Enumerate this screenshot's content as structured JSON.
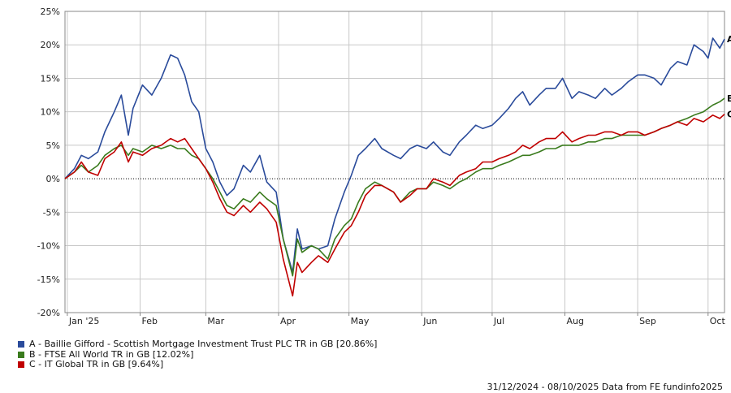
{
  "chart_data": {
    "type": "line",
    "xlabel": "",
    "ylabel": "",
    "ylim": [
      -20,
      25
    ],
    "y_ticks": [
      -20,
      -15,
      -10,
      -5,
      0,
      5,
      10,
      15,
      20,
      25
    ],
    "y_tick_labels": [
      "-20%",
      "-15%",
      "-10%",
      "-5%",
      "0%",
      "5%",
      "10%",
      "15%",
      "20%",
      "25%"
    ],
    "x_range": [
      "2024-12-31",
      "2025-10-08"
    ],
    "x_ticks": [
      {
        "date": "2025-01-01",
        "label": "Jan '25"
      },
      {
        "date": "2025-02-01",
        "label": "Feb"
      },
      {
        "date": "2025-03-01",
        "label": "Mar"
      },
      {
        "date": "2025-04-01",
        "label": "Apr"
      },
      {
        "date": "2025-05-01",
        "label": "May"
      },
      {
        "date": "2025-06-01",
        "label": "Jun"
      },
      {
        "date": "2025-07-01",
        "label": "Jul"
      },
      {
        "date": "2025-08-01",
        "label": "Aug"
      },
      {
        "date": "2025-09-01",
        "label": "Sep"
      },
      {
        "date": "2025-10-01",
        "label": "Oct"
      }
    ],
    "grid": true,
    "zero_line": "dotted",
    "legend_position": "bottom-left",
    "series": [
      {
        "name": "A - Baillie Gifford - Scottish Mortgage Investment Trust PLC TR in GB [20.86%]",
        "end_label": "A",
        "color": "#2a4b9b",
        "points": [
          [
            "2024-12-31",
            0
          ],
          [
            "2025-01-04",
            1.5
          ],
          [
            "2025-01-07",
            3.5
          ],
          [
            "2025-01-10",
            3.0
          ],
          [
            "2025-01-14",
            4.0
          ],
          [
            "2025-01-17",
            7.0
          ],
          [
            "2025-01-21",
            10.0
          ],
          [
            "2025-01-24",
            12.5
          ],
          [
            "2025-01-27",
            6.5
          ],
          [
            "2025-01-29",
            10.5
          ],
          [
            "2025-02-02",
            14.0
          ],
          [
            "2025-02-06",
            12.5
          ],
          [
            "2025-02-10",
            15.0
          ],
          [
            "2025-02-14",
            18.5
          ],
          [
            "2025-02-17",
            18.0
          ],
          [
            "2025-02-20",
            15.5
          ],
          [
            "2025-02-23",
            11.5
          ],
          [
            "2025-02-26",
            10.0
          ],
          [
            "2025-03-01",
            4.5
          ],
          [
            "2025-03-04",
            2.5
          ],
          [
            "2025-03-07",
            -0.5
          ],
          [
            "2025-03-10",
            -2.5
          ],
          [
            "2025-03-13",
            -1.5
          ],
          [
            "2025-03-17",
            2.0
          ],
          [
            "2025-03-20",
            1.0
          ],
          [
            "2025-03-24",
            3.5
          ],
          [
            "2025-03-27",
            -0.5
          ],
          [
            "2025-03-31",
            -2.0
          ],
          [
            "2025-04-03",
            -9.0
          ],
          [
            "2025-04-07",
            -14.0
          ],
          [
            "2025-04-09",
            -7.5
          ],
          [
            "2025-04-11",
            -10.5
          ],
          [
            "2025-04-15",
            -10.0
          ],
          [
            "2025-04-18",
            -10.5
          ],
          [
            "2025-04-22",
            -10.0
          ],
          [
            "2025-04-25",
            -6.0
          ],
          [
            "2025-04-29",
            -2.0
          ],
          [
            "2025-05-02",
            0.5
          ],
          [
            "2025-05-05",
            3.5
          ],
          [
            "2025-05-08",
            4.5
          ],
          [
            "2025-05-12",
            6.0
          ],
          [
            "2025-05-15",
            4.5
          ],
          [
            "2025-05-20",
            3.5
          ],
          [
            "2025-05-23",
            3.0
          ],
          [
            "2025-05-27",
            4.5
          ],
          [
            "2025-05-30",
            5.0
          ],
          [
            "2025-06-03",
            4.5
          ],
          [
            "2025-06-06",
            5.5
          ],
          [
            "2025-06-10",
            4.0
          ],
          [
            "2025-06-13",
            3.5
          ],
          [
            "2025-06-17",
            5.5
          ],
          [
            "2025-06-20",
            6.5
          ],
          [
            "2025-06-24",
            8.0
          ],
          [
            "2025-06-27",
            7.5
          ],
          [
            "2025-07-01",
            8.0
          ],
          [
            "2025-07-04",
            9.0
          ],
          [
            "2025-07-08",
            10.5
          ],
          [
            "2025-07-11",
            12.0
          ],
          [
            "2025-07-14",
            13.0
          ],
          [
            "2025-07-17",
            11.0
          ],
          [
            "2025-07-21",
            12.5
          ],
          [
            "2025-07-24",
            13.5
          ],
          [
            "2025-07-28",
            13.5
          ],
          [
            "2025-07-31",
            15.0
          ],
          [
            "2025-08-04",
            12.0
          ],
          [
            "2025-08-07",
            13.0
          ],
          [
            "2025-08-11",
            12.5
          ],
          [
            "2025-08-14",
            12.0
          ],
          [
            "2025-08-18",
            13.5
          ],
          [
            "2025-08-21",
            12.5
          ],
          [
            "2025-08-25",
            13.5
          ],
          [
            "2025-08-28",
            14.5
          ],
          [
            "2025-09-01",
            15.5
          ],
          [
            "2025-09-04",
            15.5
          ],
          [
            "2025-09-08",
            15.0
          ],
          [
            "2025-09-11",
            14.0
          ],
          [
            "2025-09-15",
            16.5
          ],
          [
            "2025-09-18",
            17.5
          ],
          [
            "2025-09-22",
            17.0
          ],
          [
            "2025-09-25",
            20.0
          ],
          [
            "2025-09-29",
            19.0
          ],
          [
            "2025-10-01",
            18.0
          ],
          [
            "2025-10-03",
            21.0
          ],
          [
            "2025-10-06",
            19.5
          ],
          [
            "2025-10-08",
            20.86
          ]
        ]
      },
      {
        "name": "B - FTSE All World TR in GB [12.02%]",
        "end_label": "B",
        "color": "#3a7b1d",
        "points": [
          [
            "2024-12-31",
            0
          ],
          [
            "2025-01-04",
            1.0
          ],
          [
            "2025-01-07",
            2.0
          ],
          [
            "2025-01-10",
            1.0
          ],
          [
            "2025-01-14",
            2.0
          ],
          [
            "2025-01-17",
            3.5
          ],
          [
            "2025-01-21",
            4.5
          ],
          [
            "2025-01-24",
            5.0
          ],
          [
            "2025-01-27",
            3.5
          ],
          [
            "2025-01-29",
            4.5
          ],
          [
            "2025-02-02",
            4.0
          ],
          [
            "2025-02-06",
            5.0
          ],
          [
            "2025-02-10",
            4.5
          ],
          [
            "2025-02-14",
            5.0
          ],
          [
            "2025-02-17",
            4.5
          ],
          [
            "2025-02-20",
            4.5
          ],
          [
            "2025-02-23",
            3.5
          ],
          [
            "2025-02-26",
            3.0
          ],
          [
            "2025-03-01",
            1.5
          ],
          [
            "2025-03-04",
            0.0
          ],
          [
            "2025-03-07",
            -2.0
          ],
          [
            "2025-03-10",
            -4.0
          ],
          [
            "2025-03-13",
            -4.5
          ],
          [
            "2025-03-17",
            -3.0
          ],
          [
            "2025-03-20",
            -3.5
          ],
          [
            "2025-03-24",
            -2.0
          ],
          [
            "2025-03-27",
            -3.0
          ],
          [
            "2025-03-31",
            -4.0
          ],
          [
            "2025-04-03",
            -9.0
          ],
          [
            "2025-04-07",
            -14.5
          ],
          [
            "2025-04-09",
            -9.0
          ],
          [
            "2025-04-11",
            -11.0
          ],
          [
            "2025-04-15",
            -10.0
          ],
          [
            "2025-04-18",
            -10.5
          ],
          [
            "2025-04-22",
            -12.0
          ],
          [
            "2025-04-25",
            -9.0
          ],
          [
            "2025-04-29",
            -7.0
          ],
          [
            "2025-05-02",
            -6.0
          ],
          [
            "2025-05-05",
            -3.5
          ],
          [
            "2025-05-08",
            -1.5
          ],
          [
            "2025-05-12",
            -0.5
          ],
          [
            "2025-05-15",
            -1.0
          ],
          [
            "2025-05-20",
            -2.0
          ],
          [
            "2025-05-23",
            -3.5
          ],
          [
            "2025-05-27",
            -2.0
          ],
          [
            "2025-05-30",
            -1.5
          ],
          [
            "2025-06-03",
            -1.5
          ],
          [
            "2025-06-06",
            -0.5
          ],
          [
            "2025-06-10",
            -1.0
          ],
          [
            "2025-06-13",
            -1.5
          ],
          [
            "2025-06-17",
            -0.5
          ],
          [
            "2025-06-20",
            0.0
          ],
          [
            "2025-06-24",
            1.0
          ],
          [
            "2025-06-27",
            1.5
          ],
          [
            "2025-07-01",
            1.5
          ],
          [
            "2025-07-04",
            2.0
          ],
          [
            "2025-07-08",
            2.5
          ],
          [
            "2025-07-11",
            3.0
          ],
          [
            "2025-07-14",
            3.5
          ],
          [
            "2025-07-17",
            3.5
          ],
          [
            "2025-07-21",
            4.0
          ],
          [
            "2025-07-24",
            4.5
          ],
          [
            "2025-07-28",
            4.5
          ],
          [
            "2025-07-31",
            5.0
          ],
          [
            "2025-08-04",
            5.0
          ],
          [
            "2025-08-07",
            5.0
          ],
          [
            "2025-08-11",
            5.5
          ],
          [
            "2025-08-14",
            5.5
          ],
          [
            "2025-08-18",
            6.0
          ],
          [
            "2025-08-21",
            6.0
          ],
          [
            "2025-08-25",
            6.5
          ],
          [
            "2025-08-28",
            6.5
          ],
          [
            "2025-09-01",
            6.5
          ],
          [
            "2025-09-04",
            6.5
          ],
          [
            "2025-09-08",
            7.0
          ],
          [
            "2025-09-11",
            7.5
          ],
          [
            "2025-09-15",
            8.0
          ],
          [
            "2025-09-18",
            8.5
          ],
          [
            "2025-09-22",
            9.0
          ],
          [
            "2025-09-25",
            9.5
          ],
          [
            "2025-09-29",
            10.0
          ],
          [
            "2025-10-01",
            10.5
          ],
          [
            "2025-10-03",
            11.0
          ],
          [
            "2025-10-06",
            11.5
          ],
          [
            "2025-10-08",
            12.02
          ]
        ]
      },
      {
        "name": "C - IT Global TR in GB [9.64%]",
        "end_label": "C",
        "color": "#c00000",
        "points": [
          [
            "2024-12-31",
            0
          ],
          [
            "2025-01-04",
            1.0
          ],
          [
            "2025-01-07",
            2.5
          ],
          [
            "2025-01-10",
            1.0
          ],
          [
            "2025-01-14",
            0.5
          ],
          [
            "2025-01-17",
            3.0
          ],
          [
            "2025-01-21",
            4.0
          ],
          [
            "2025-01-24",
            5.5
          ],
          [
            "2025-01-27",
            2.5
          ],
          [
            "2025-01-29",
            4.0
          ],
          [
            "2025-02-02",
            3.5
          ],
          [
            "2025-02-06",
            4.5
          ],
          [
            "2025-02-10",
            5.0
          ],
          [
            "2025-02-14",
            6.0
          ],
          [
            "2025-02-17",
            5.5
          ],
          [
            "2025-02-20",
            6.0
          ],
          [
            "2025-02-23",
            4.5
          ],
          [
            "2025-02-26",
            3.0
          ],
          [
            "2025-03-01",
            1.5
          ],
          [
            "2025-03-04",
            -0.5
          ],
          [
            "2025-03-07",
            -3.0
          ],
          [
            "2025-03-10",
            -5.0
          ],
          [
            "2025-03-13",
            -5.5
          ],
          [
            "2025-03-17",
            -4.0
          ],
          [
            "2025-03-20",
            -5.0
          ],
          [
            "2025-03-24",
            -3.5
          ],
          [
            "2025-03-27",
            -4.5
          ],
          [
            "2025-03-31",
            -6.5
          ],
          [
            "2025-04-03",
            -12.0
          ],
          [
            "2025-04-07",
            -17.5
          ],
          [
            "2025-04-09",
            -12.5
          ],
          [
            "2025-04-11",
            -14.0
          ],
          [
            "2025-04-15",
            -12.5
          ],
          [
            "2025-04-18",
            -11.5
          ],
          [
            "2025-04-22",
            -12.5
          ],
          [
            "2025-04-25",
            -10.5
          ],
          [
            "2025-04-29",
            -8.0
          ],
          [
            "2025-05-02",
            -7.0
          ],
          [
            "2025-05-05",
            -5.0
          ],
          [
            "2025-05-08",
            -2.5
          ],
          [
            "2025-05-12",
            -1.0
          ],
          [
            "2025-05-15",
            -1.0
          ],
          [
            "2025-05-20",
            -2.0
          ],
          [
            "2025-05-23",
            -3.5
          ],
          [
            "2025-05-27",
            -2.5
          ],
          [
            "2025-05-30",
            -1.5
          ],
          [
            "2025-06-03",
            -1.5
          ],
          [
            "2025-06-06",
            0.0
          ],
          [
            "2025-06-10",
            -0.5
          ],
          [
            "2025-06-13",
            -1.0
          ],
          [
            "2025-06-17",
            0.5
          ],
          [
            "2025-06-20",
            1.0
          ],
          [
            "2025-06-24",
            1.5
          ],
          [
            "2025-06-27",
            2.5
          ],
          [
            "2025-07-01",
            2.5
          ],
          [
            "2025-07-04",
            3.0
          ],
          [
            "2025-07-08",
            3.5
          ],
          [
            "2025-07-11",
            4.0
          ],
          [
            "2025-07-14",
            5.0
          ],
          [
            "2025-07-17",
            4.5
          ],
          [
            "2025-07-21",
            5.5
          ],
          [
            "2025-07-24",
            6.0
          ],
          [
            "2025-07-28",
            6.0
          ],
          [
            "2025-07-31",
            7.0
          ],
          [
            "2025-08-04",
            5.5
          ],
          [
            "2025-08-07",
            6.0
          ],
          [
            "2025-08-11",
            6.5
          ],
          [
            "2025-08-14",
            6.5
          ],
          [
            "2025-08-18",
            7.0
          ],
          [
            "2025-08-21",
            7.0
          ],
          [
            "2025-08-25",
            6.5
          ],
          [
            "2025-08-28",
            7.0
          ],
          [
            "2025-09-01",
            7.0
          ],
          [
            "2025-09-04",
            6.5
          ],
          [
            "2025-09-08",
            7.0
          ],
          [
            "2025-09-11",
            7.5
          ],
          [
            "2025-09-15",
            8.0
          ],
          [
            "2025-09-18",
            8.5
          ],
          [
            "2025-09-22",
            8.0
          ],
          [
            "2025-09-25",
            9.0
          ],
          [
            "2025-09-29",
            8.5
          ],
          [
            "2025-10-01",
            9.0
          ],
          [
            "2025-10-03",
            9.5
          ],
          [
            "2025-10-06",
            9.0
          ],
          [
            "2025-10-08",
            9.64
          ]
        ]
      }
    ]
  },
  "footer": {
    "text": "31/12/2024 - 08/10/2025 Data from FE fundinfo2025"
  }
}
